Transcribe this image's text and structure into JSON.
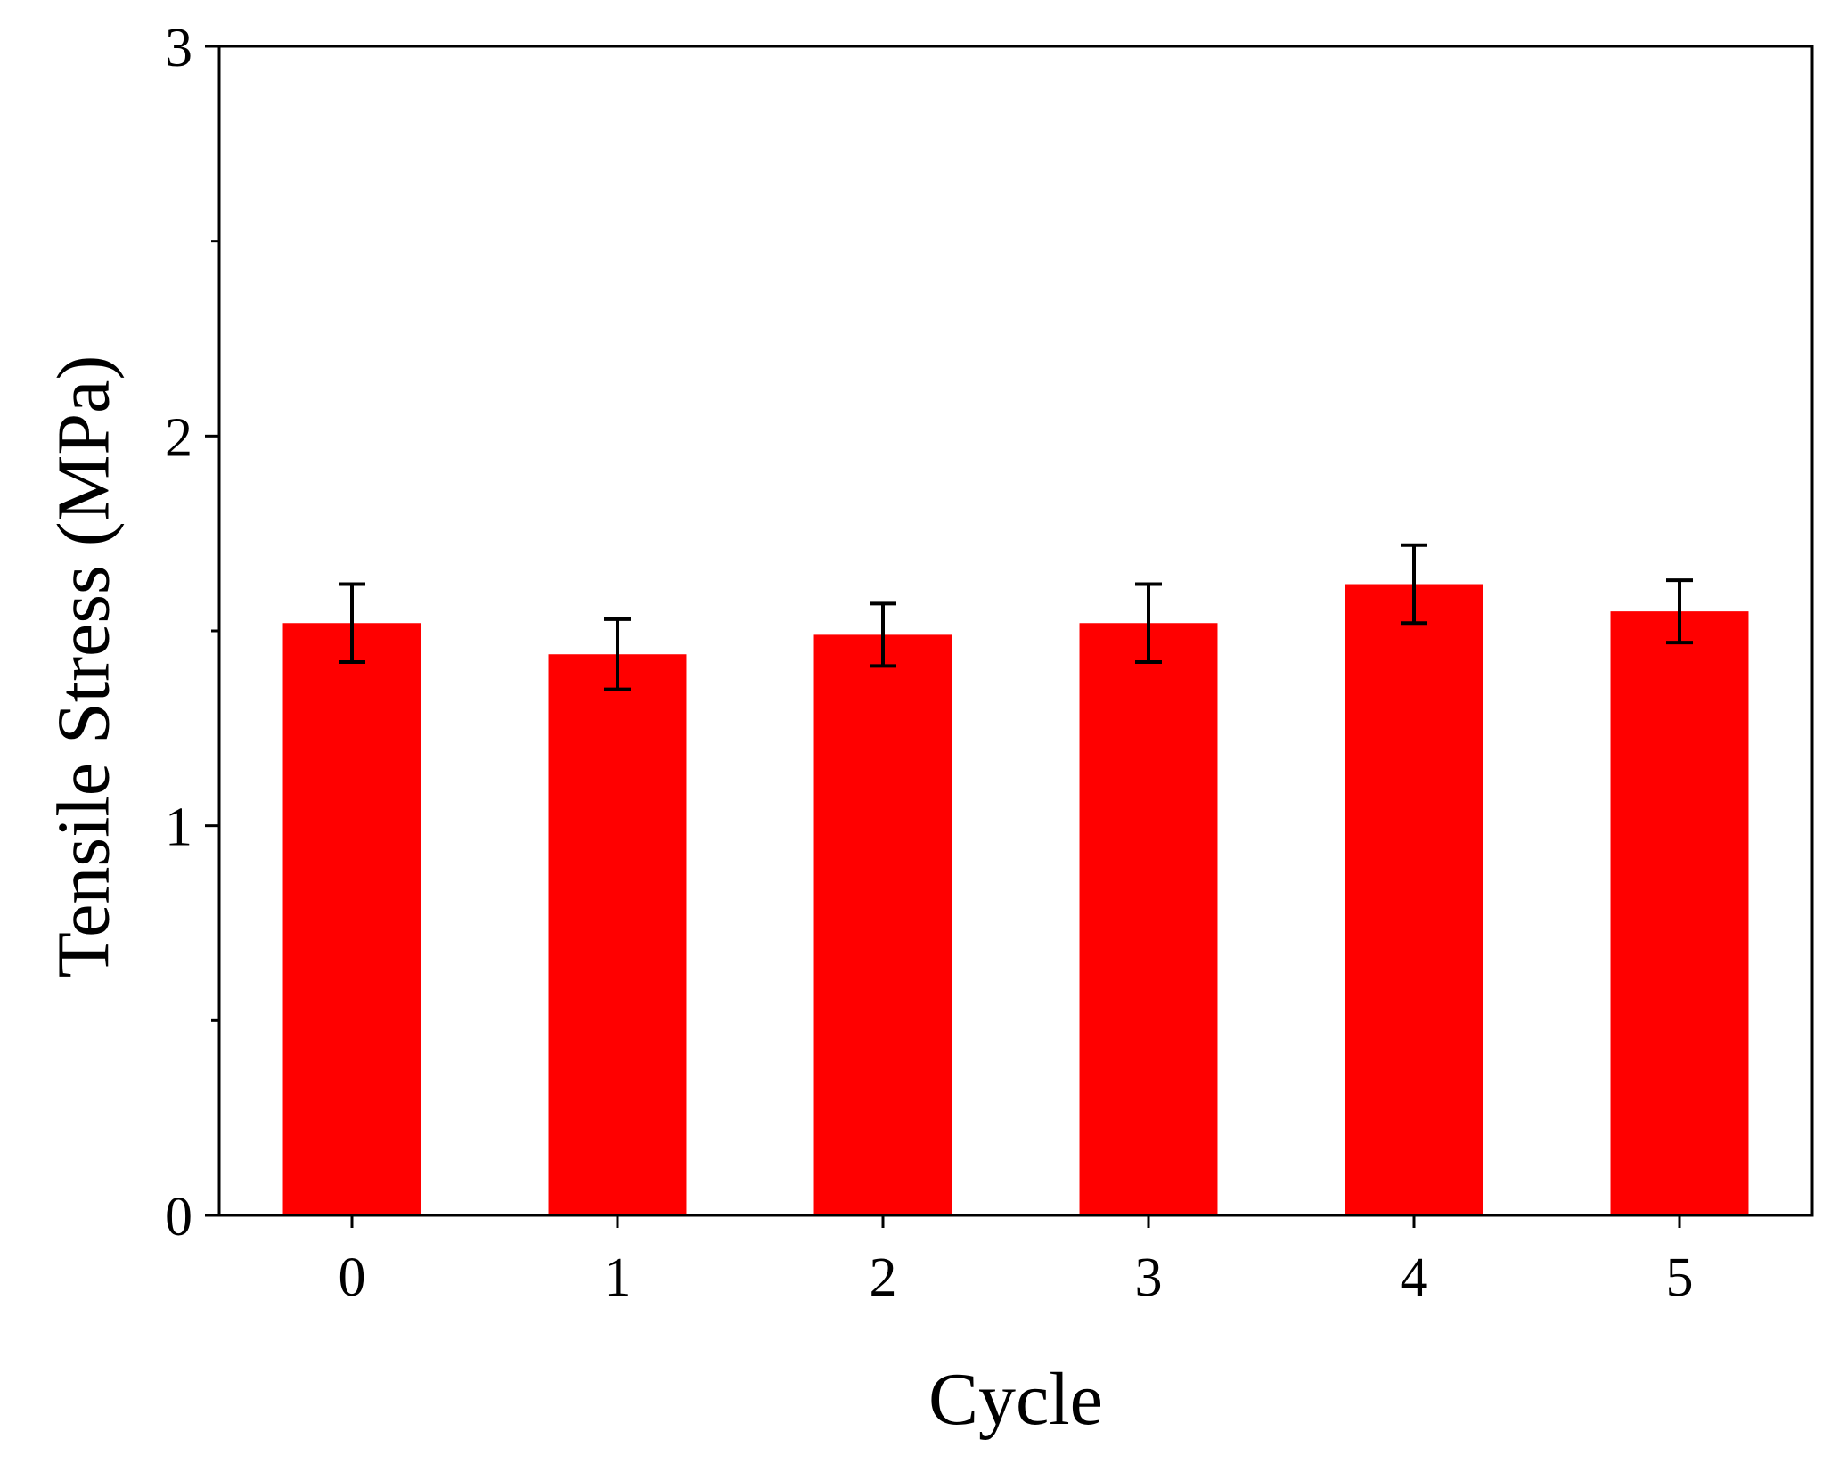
{
  "chart_data": {
    "type": "bar",
    "title": "",
    "xlabel": "Cycle",
    "ylabel": "Tensile Stress (MPa)",
    "categories": [
      "0",
      "1",
      "2",
      "3",
      "4",
      "5"
    ],
    "values": [
      1.52,
      1.44,
      1.49,
      1.52,
      1.62,
      1.55
    ],
    "errors": [
      0.1,
      0.09,
      0.08,
      0.1,
      0.1,
      0.08
    ],
    "ylim": [
      0,
      3
    ],
    "yticks": [
      0,
      1,
      2,
      3
    ],
    "ytick_labels": [
      "0",
      "1",
      "2",
      "3"
    ],
    "yminor_ticks": [
      0.5,
      1.5,
      2.5
    ],
    "grid": false,
    "legend": "none",
    "bar_color": "#ff0000",
    "error_color": "#000000"
  }
}
